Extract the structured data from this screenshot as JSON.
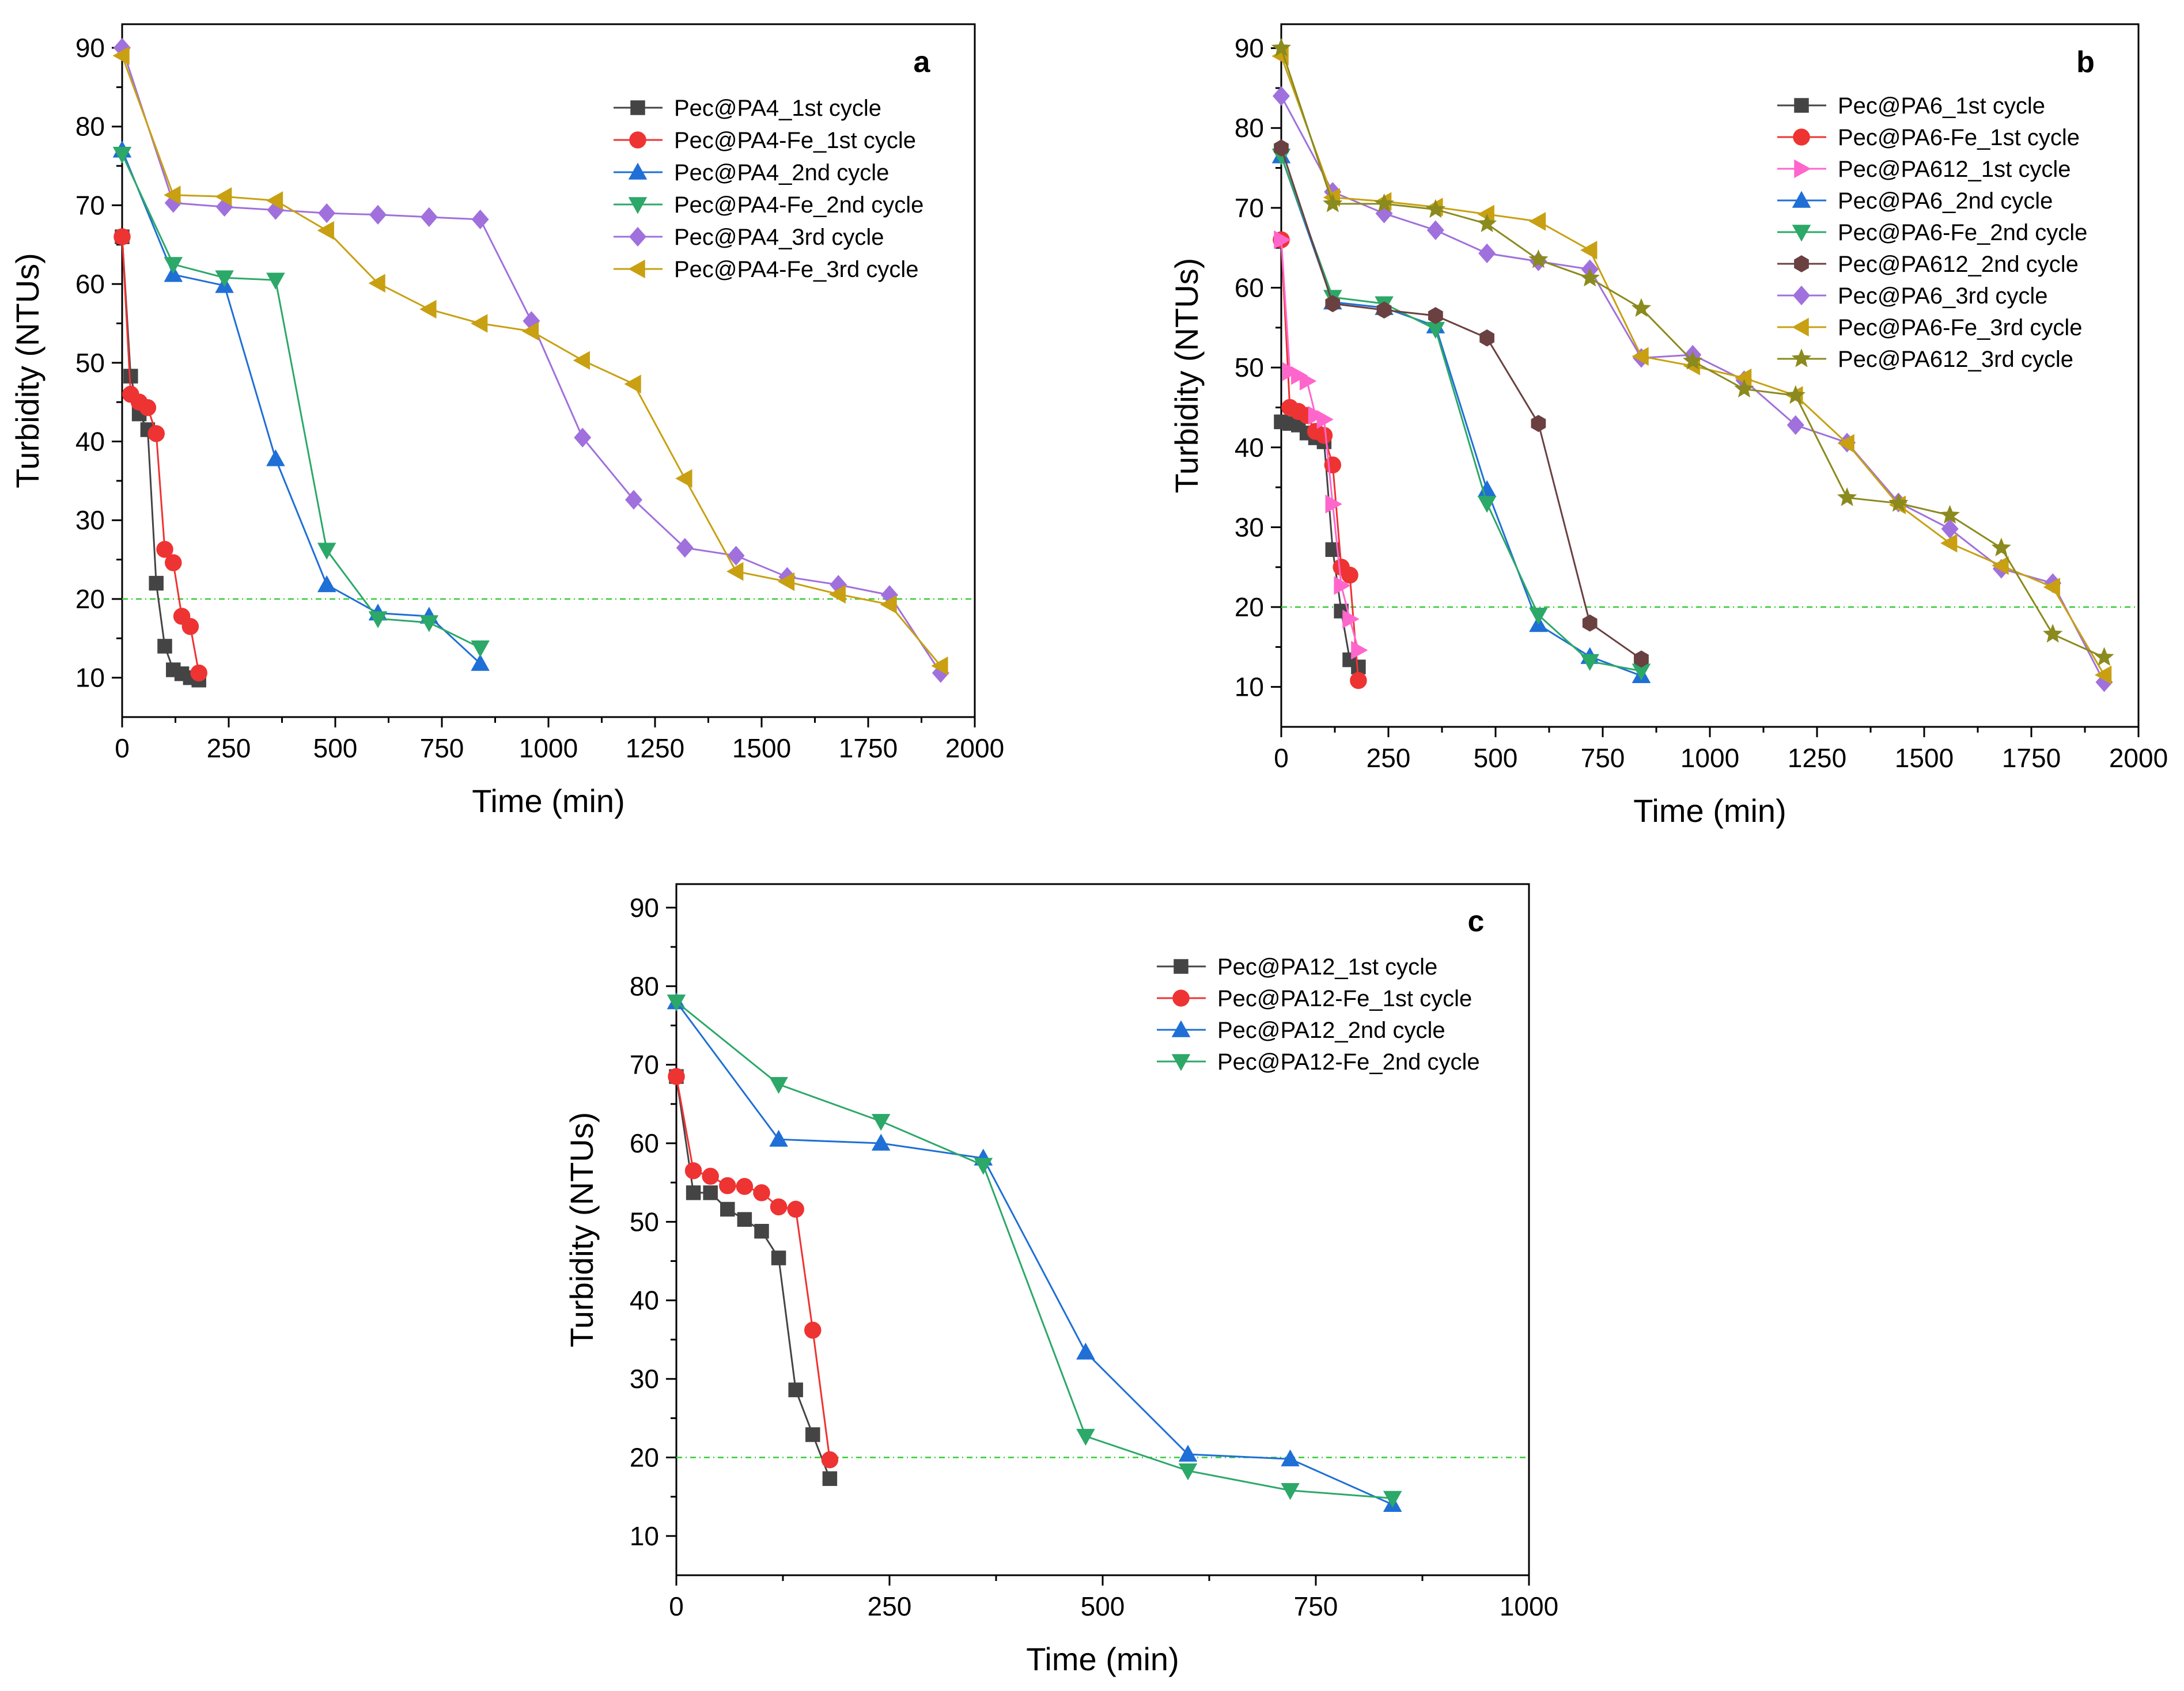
{
  "chart_data": [
    {
      "panel": "a",
      "type": "line",
      "xlabel": "Time (min)",
      "ylabel": "Turbidity (NTUs)",
      "xlim": [
        0,
        2000
      ],
      "ylim": [
        5,
        93
      ],
      "xticks": [
        0,
        250,
        500,
        750,
        1000,
        1250,
        1500,
        1750,
        2000
      ],
      "yticks": [
        10,
        20,
        30,
        40,
        50,
        60,
        70,
        80,
        90
      ],
      "threshold": 20,
      "threshold_color": "#33cc33",
      "series": [
        {
          "name": "Pec@PA4_1st cycle",
          "color": "#444444",
          "marker": "square",
          "x": [
            0,
            20,
            40,
            60,
            80,
            100,
            120,
            140,
            160,
            180
          ],
          "y": [
            66,
            48.3,
            43.5,
            41.5,
            22,
            14,
            11,
            10.5,
            10,
            9.7
          ]
        },
        {
          "name": "Pec@PA4-Fe_1st cycle",
          "color": "#ee3333",
          "marker": "circle",
          "x": [
            0,
            20,
            40,
            60,
            80,
            100,
            120,
            140,
            160,
            180
          ],
          "y": [
            66,
            46,
            45,
            44.3,
            41,
            26.3,
            24.6,
            17.8,
            16.5,
            10.6
          ]
        },
        {
          "name": "Pec@PA4_2nd cycle",
          "color": "#1f6fd6",
          "marker": "triangle-up",
          "x": [
            0,
            120,
            240,
            360,
            480,
            600,
            720,
            840
          ],
          "y": [
            77,
            61.2,
            59.8,
            37.8,
            21.8,
            18.2,
            17.8,
            11.8
          ]
        },
        {
          "name": "Pec@PA4-Fe_2nd cycle",
          "color": "#2ca868",
          "marker": "triangle-down",
          "x": [
            0,
            120,
            240,
            360,
            480,
            600,
            720,
            840
          ],
          "y": [
            76.5,
            62.5,
            60.8,
            60.5,
            26.2,
            17.5,
            17.0,
            13.8
          ]
        },
        {
          "name": "Pec@PA4_3rd cycle",
          "color": "#a070dd",
          "marker": "diamond",
          "x": [
            0,
            120,
            240,
            360,
            480,
            600,
            720,
            840,
            960,
            1080,
            1200,
            1320,
            1440,
            1560,
            1680,
            1800,
            1920
          ],
          "y": [
            90,
            70.3,
            69.8,
            69.4,
            69.0,
            68.8,
            68.5,
            68.2,
            55.3,
            40.5,
            32.6,
            26.5,
            25.5,
            22.8,
            21.8,
            20.5,
            10.6
          ]
        },
        {
          "name": "Pec@PA4-Fe_3rd cycle",
          "color": "#c8a012",
          "marker": "triangle-left",
          "x": [
            0,
            120,
            240,
            360,
            480,
            600,
            720,
            840,
            960,
            1080,
            1200,
            1320,
            1440,
            1560,
            1680,
            1800,
            1920
          ],
          "y": [
            89,
            71.3,
            71.1,
            70.6,
            66.8,
            60.1,
            56.8,
            55.0,
            54.0,
            50.3,
            47.3,
            35.3,
            23.5,
            22.2,
            20.6,
            19.3,
            11.5
          ]
        }
      ]
    },
    {
      "panel": "b",
      "type": "line",
      "xlabel": "Time (min)",
      "ylabel": "Turbidity (NTUs)",
      "xlim": [
        0,
        2000
      ],
      "ylim": [
        5,
        93
      ],
      "xticks": [
        0,
        250,
        500,
        750,
        1000,
        1250,
        1500,
        1750,
        2000
      ],
      "yticks": [
        10,
        20,
        30,
        40,
        50,
        60,
        70,
        80,
        90
      ],
      "threshold": 20,
      "threshold_color": "#33cc33",
      "series": [
        {
          "name": "Pec@PA6_1st cycle",
          "color": "#444444",
          "marker": "square",
          "x": [
            0,
            20,
            40,
            60,
            80,
            100,
            120,
            140,
            160,
            180
          ],
          "y": [
            43.2,
            43,
            42.8,
            41.8,
            41.2,
            40.7,
            27.2,
            19.5,
            13.4,
            12.5
          ]
        },
        {
          "name": "Pec@PA6-Fe_1st cycle",
          "color": "#ee3333",
          "marker": "circle",
          "x": [
            0,
            20,
            40,
            60,
            80,
            100,
            120,
            140,
            160,
            180
          ],
          "y": [
            66,
            45,
            44.5,
            44,
            42,
            41.5,
            37.8,
            25,
            24,
            10.8
          ]
        },
        {
          "name": "Pec@PA612_1st cycle",
          "color": "#ff66cc",
          "marker": "triangle-right",
          "x": [
            0,
            20,
            40,
            60,
            80,
            100,
            120,
            140,
            160,
            180
          ],
          "y": [
            66,
            49.5,
            49,
            48.3,
            44,
            43.5,
            32.9,
            22.7,
            18.5,
            14.6
          ]
        },
        {
          "name": "Pec@PA6_2nd cycle",
          "color": "#1f6fd6",
          "marker": "triangle-up",
          "x": [
            0,
            120,
            240,
            360,
            480,
            600,
            720,
            840
          ],
          "y": [
            76.5,
            58.2,
            57.5,
            55.2,
            34.7,
            17.8,
            13.8,
            11.4
          ]
        },
        {
          "name": "Pec@PA6-Fe_2nd cycle",
          "color": "#2ca868",
          "marker": "triangle-down",
          "x": [
            0,
            120,
            240,
            360,
            480,
            600,
            720,
            840
          ],
          "y": [
            76.5,
            58.8,
            58.0,
            54.8,
            33.0,
            19.0,
            13.2,
            12.0
          ]
        },
        {
          "name": "Pec@PA612_2nd cycle",
          "color": "#6b4040",
          "marker": "hexagon",
          "x": [
            0,
            120,
            240,
            360,
            480,
            600,
            720,
            840
          ],
          "y": [
            77.5,
            58.0,
            57.2,
            56.5,
            53.7,
            43.0,
            18.0,
            13.5
          ]
        },
        {
          "name": "Pec@PA6_3rd cycle",
          "color": "#a070dd",
          "marker": "diamond",
          "x": [
            0,
            120,
            240,
            360,
            480,
            600,
            720,
            840,
            960,
            1080,
            1200,
            1320,
            1440,
            1560,
            1680,
            1800,
            1920
          ],
          "y": [
            84,
            72.0,
            69.3,
            67.2,
            64.3,
            63.3,
            62.3,
            51.2,
            51.6,
            48.4,
            42.8,
            40.6,
            33.1,
            29.8,
            24.8,
            23.0,
            10.6
          ]
        },
        {
          "name": "Pec@PA6-Fe_3rd cycle",
          "color": "#c8a012",
          "marker": "triangle-left",
          "x": [
            0,
            120,
            240,
            360,
            480,
            600,
            720,
            840,
            960,
            1080,
            1200,
            1320,
            1440,
            1560,
            1680,
            1800,
            1920
          ],
          "y": [
            89,
            71.3,
            70.8,
            70.1,
            69.2,
            68.3,
            64.7,
            51.4,
            50.2,
            48.7,
            46.5,
            40.5,
            32.8,
            28.0,
            25.2,
            22.5,
            11.5
          ]
        },
        {
          "name": "Pec@PA612_3rd cycle",
          "color": "#8a8a1e",
          "marker": "star",
          "x": [
            0,
            120,
            240,
            360,
            480,
            600,
            720,
            840,
            960,
            1080,
            1200,
            1320,
            1440,
            1560,
            1680,
            1800,
            1920
          ],
          "y": [
            90,
            70.5,
            70.5,
            69.8,
            68.0,
            63.5,
            61.2,
            57.4,
            50.8,
            47.3,
            46.5,
            33.7,
            33.0,
            31.5,
            27.4,
            16.6,
            13.7
          ]
        }
      ]
    },
    {
      "panel": "c",
      "type": "line",
      "xlabel": "Time (min)",
      "ylabel": "Turbidity (NTUs)",
      "xlim": [
        0,
        1000
      ],
      "ylim": [
        5,
        93
      ],
      "xticks": [
        0,
        250,
        500,
        750,
        1000
      ],
      "yticks": [
        10,
        20,
        30,
        40,
        50,
        60,
        70,
        80,
        90
      ],
      "threshold": 20,
      "threshold_color": "#33cc33",
      "series": [
        {
          "name": "Pec@PA12_1st cycle",
          "color": "#444444",
          "marker": "square",
          "x": [
            0,
            20,
            40,
            60,
            80,
            100,
            120,
            140,
            160,
            180
          ],
          "y": [
            68.5,
            53.7,
            53.7,
            51.6,
            50.3,
            48.8,
            45.4,
            28.6,
            22.9,
            17.3
          ]
        },
        {
          "name": "Pec@PA12-Fe_1st cycle",
          "color": "#ee3333",
          "marker": "circle",
          "x": [
            0,
            20,
            40,
            60,
            80,
            100,
            120,
            140,
            160,
            180
          ],
          "y": [
            68.5,
            56.5,
            55.8,
            54.6,
            54.5,
            53.7,
            51.9,
            51.6,
            36.2,
            19.7
          ]
        },
        {
          "name": "Pec@PA12_2nd cycle",
          "color": "#1f6fd6",
          "marker": "triangle-up",
          "x": [
            0,
            120,
            240,
            360,
            480,
            600,
            720,
            840
          ],
          "y": [
            78,
            60.5,
            60.0,
            58.1,
            33.4,
            20.4,
            19.8,
            14.0
          ]
        },
        {
          "name": "Pec@PA12-Fe_2nd cycle",
          "color": "#2ca868",
          "marker": "triangle-down",
          "x": [
            0,
            120,
            240,
            360,
            480,
            600,
            720,
            840
          ],
          "y": [
            78,
            67.5,
            62.8,
            57.2,
            22.7,
            18.3,
            15.8,
            14.8
          ]
        }
      ]
    }
  ]
}
